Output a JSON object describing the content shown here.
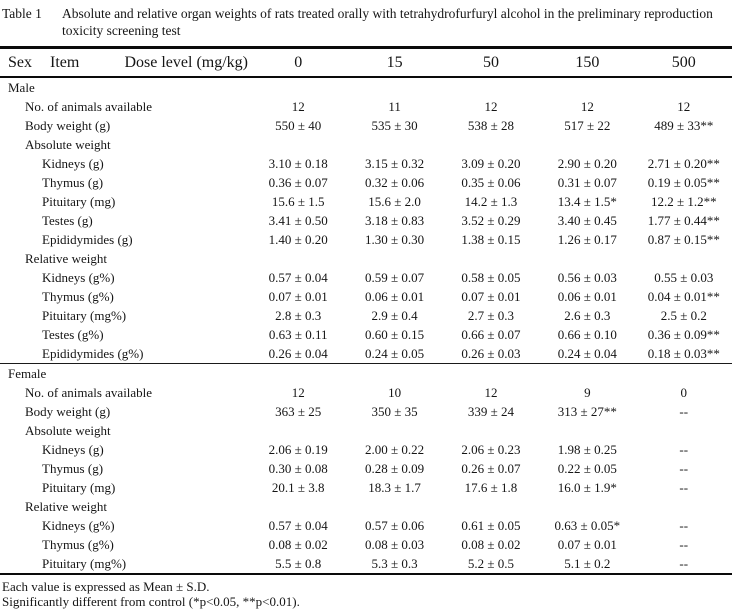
{
  "title": {
    "label": "Table 1",
    "text": "Absolute and relative organ weights of rats treated orally with tetrahydrofurfuryl alcohol in the preliminary reproduction toxicity screening test"
  },
  "table": {
    "header": {
      "sex": "Sex",
      "item": "Item",
      "dose": "Dose level (mg/kg)",
      "doses": [
        "0",
        "15",
        "50",
        "150",
        "500"
      ]
    },
    "sections": [
      {
        "sex": "Male",
        "rows": [
          {
            "label": "No. of animals available",
            "indent": 1,
            "values": [
              "12",
              "11",
              "12",
              "12",
              "12"
            ]
          },
          {
            "label": "Body weight (g)",
            "indent": 1,
            "values": [
              "550 ± 40",
              "535 ± 30",
              "538 ± 28",
              "517 ± 22",
              "489 ± 33**"
            ]
          },
          {
            "label": "Absolute weight",
            "indent": 1,
            "values": []
          },
          {
            "label": "Kidneys (g)",
            "indent": 2,
            "values": [
              "3.10 ± 0.18",
              "3.15 ± 0.32",
              "3.09 ± 0.20",
              "2.90 ± 0.20",
              "2.71 ± 0.20**"
            ]
          },
          {
            "label": "Thymus (g)",
            "indent": 2,
            "values": [
              "0.36 ± 0.07",
              "0.32 ± 0.06",
              "0.35 ± 0.06",
              "0.31 ± 0.07",
              "0.19 ± 0.05**"
            ]
          },
          {
            "label": "Pituitary (mg)",
            "indent": 2,
            "values": [
              "15.6 ± 1.5",
              "15.6 ± 2.0",
              "14.2 ± 1.3",
              "13.4 ± 1.5*",
              "12.2 ± 1.2**"
            ]
          },
          {
            "label": "Testes (g)",
            "indent": 2,
            "values": [
              "3.41 ± 0.50",
              "3.18 ± 0.83",
              "3.52 ± 0.29",
              "3.40 ± 0.45",
              "1.77 ± 0.44**"
            ]
          },
          {
            "label": "Epididymides (g)",
            "indent": 2,
            "values": [
              "1.40 ± 0.20",
              "1.30 ± 0.30",
              "1.38 ± 0.15",
              "1.26 ± 0.17",
              "0.87 ± 0.15**"
            ]
          },
          {
            "label": "Relative weight",
            "indent": 1,
            "values": []
          },
          {
            "label": "Kidneys (g%)",
            "indent": 2,
            "values": [
              "0.57 ± 0.04",
              "0.59 ± 0.07",
              "0.58 ± 0.05",
              "0.56 ± 0.03",
              "0.55 ± 0.03"
            ]
          },
          {
            "label": "Thymus (g%)",
            "indent": 2,
            "values": [
              "0.07 ± 0.01",
              "0.06 ± 0.01",
              "0.07 ± 0.01",
              "0.06 ± 0.01",
              "0.04 ± 0.01**"
            ]
          },
          {
            "label": "Pituitary (mg%)",
            "indent": 2,
            "values": [
              "2.8 ± 0.3",
              "2.9 ± 0.4",
              "2.7 ± 0.3",
              "2.6 ± 0.3",
              "2.5 ± 0.2"
            ]
          },
          {
            "label": "Testes (g%)",
            "indent": 2,
            "values": [
              "0.63 ± 0.11",
              "0.60 ± 0.15",
              "0.66 ± 0.07",
              "0.66 ± 0.10",
              "0.36 ± 0.09**"
            ]
          },
          {
            "label": "Epididymides (g%)",
            "indent": 2,
            "values": [
              "0.26 ± 0.04",
              "0.24 ± 0.05",
              "0.26 ± 0.03",
              "0.24 ± 0.04",
              "0.18 ± 0.03**"
            ]
          }
        ]
      },
      {
        "sex": "Female",
        "rows": [
          {
            "label": "No. of animals available",
            "indent": 1,
            "values": [
              "12",
              "10",
              "12",
              "9",
              "0"
            ]
          },
          {
            "label": "Body weight (g)",
            "indent": 1,
            "values": [
              "363 ± 25",
              "350 ± 35",
              "339 ± 24",
              "313 ± 27**",
              "--"
            ]
          },
          {
            "label": "Absolute weight",
            "indent": 1,
            "values": []
          },
          {
            "label": "Kidneys (g)",
            "indent": 2,
            "values": [
              "2.06 ± 0.19",
              "2.00 ± 0.22",
              "2.06 ± 0.23",
              "1.98 ± 0.25",
              "--"
            ]
          },
          {
            "label": "Thymus (g)",
            "indent": 2,
            "values": [
              "0.30 ± 0.08",
              "0.28 ± 0.09",
              "0.26 ± 0.07",
              "0.22 ± 0.05",
              "--"
            ]
          },
          {
            "label": "Pituitary (mg)",
            "indent": 2,
            "values": [
              "20.1 ± 3.8",
              "18.3 ± 1.7",
              "17.6 ± 1.8",
              "16.0 ± 1.9*",
              "--"
            ]
          },
          {
            "label": "Relative weight",
            "indent": 1,
            "values": []
          },
          {
            "label": "Kidneys (g%)",
            "indent": 2,
            "values": [
              "0.57 ± 0.04",
              "0.57 ± 0.06",
              "0.61 ± 0.05",
              "0.63 ± 0.05*",
              "--"
            ]
          },
          {
            "label": "Thymus (g%)",
            "indent": 2,
            "values": [
              "0.08 ± 0.02",
              "0.08 ± 0.03",
              "0.08 ± 0.02",
              "0.07 ± 0.01",
              "--"
            ]
          },
          {
            "label": "Pituitary (mg%)",
            "indent": 2,
            "values": [
              "5.5 ± 0.8",
              "5.3 ± 0.3",
              "5.2 ± 0.5",
              "5.1 ± 0.2",
              "--"
            ]
          }
        ]
      }
    ]
  },
  "footnotes": [
    "Each value is expressed as Mean ± S.D.",
    "Significantly different from control (*p<0.05, **p<0.01)."
  ]
}
